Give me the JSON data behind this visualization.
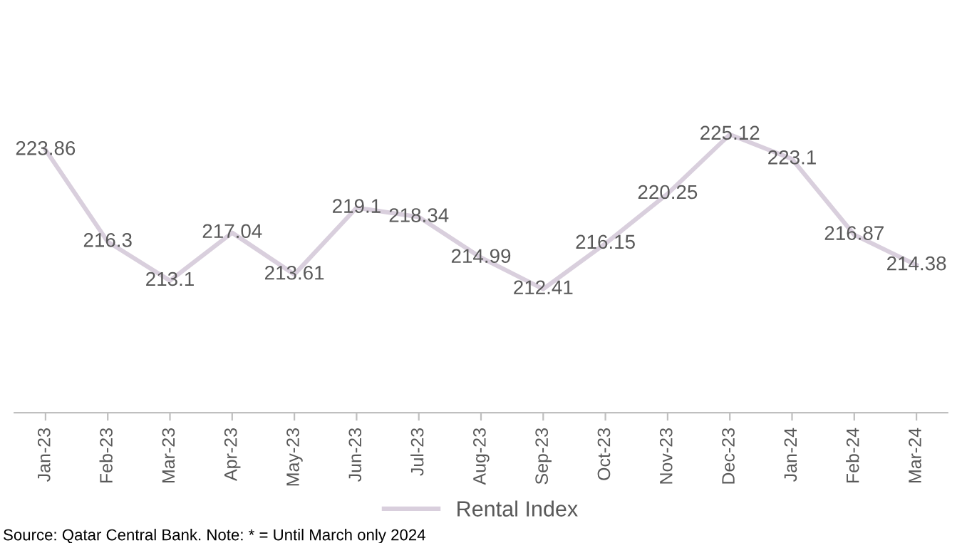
{
  "chart_data": {
    "type": "line",
    "categories": [
      "Jan-23",
      "Feb-23",
      "Mar-23",
      "Apr-23",
      "May-23",
      "Jun-23",
      "Jul-23",
      "Aug-23",
      "Sep-23",
      "Oct-23",
      "Nov-23",
      "Dec-23",
      "Jan-24",
      "Feb-24",
      "Mar-24"
    ],
    "series": [
      {
        "name": "Rental Index",
        "color": "#d9cfdd",
        "values": [
          223.86,
          216.3,
          213.1,
          217.04,
          213.61,
          219.1,
          218.34,
          214.99,
          212.41,
          216.15,
          220.25,
          225.12,
          223.1,
          216.87,
          214.38
        ]
      }
    ],
    "tick_labels": "x",
    "data_labels": true,
    "grid": false,
    "legend": "bottom",
    "marker": "none",
    "line_style": "solid",
    "annotations": [
      "Source: Qatar Central Bank. Note: * = Until March only 2024"
    ]
  }
}
